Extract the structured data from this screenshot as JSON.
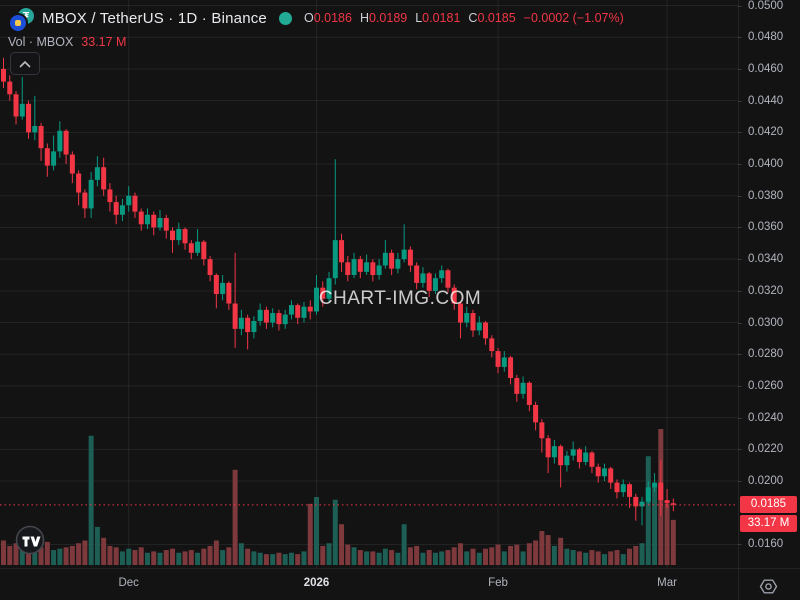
{
  "header": {
    "title": "MBOX / TetherUS · 1D · Binance",
    "ohlc": [
      {
        "k": "O",
        "v": "0.0186"
      },
      {
        "k": "H",
        "v": "0.0189"
      },
      {
        "k": "L",
        "v": "0.0181"
      },
      {
        "k": "C",
        "v": "0.0185"
      }
    ],
    "change": "−0.0002 (−1.07%)",
    "vol_label": "Vol · MBOX",
    "vol_value": "33.17 M"
  },
  "watermark": "CHART-IMG.COM",
  "price_axis": {
    "tick_labels": [
      "0.0500",
      "0.0480",
      "0.0460",
      "0.0440",
      "0.0420",
      "0.0400",
      "0.0380",
      "0.0360",
      "0.0340",
      "0.0320",
      "0.0300",
      "0.0280",
      "0.0260",
      "0.0240",
      "0.0220",
      "0.0200",
      "0.0160"
    ],
    "last_price_badge": "0.0185",
    "volume_badge": "33.17 M"
  },
  "time_axis": {
    "ticks": [
      {
        "label": "Dec",
        "index": 20,
        "bold": false
      },
      {
        "label": "2026",
        "index": 50,
        "bold": true
      },
      {
        "label": "Feb",
        "index": 79,
        "bold": false
      },
      {
        "label": "Mar",
        "index": 106,
        "bold": false
      }
    ]
  },
  "colors": {
    "background": "#131314",
    "up": "#089981",
    "down": "#f23645",
    "vol_up": "#1d5e55",
    "vol_down": "#7e393d",
    "grid": "rgba(255,255,255,0.07)",
    "axis_text": "#b2b5be",
    "badge_bg": "#f23645",
    "price_line": "#f23645",
    "status_dot": "#22ab94",
    "quote_logo": "#26a69a",
    "base_logo": "#1d4ed8"
  },
  "chart_data": {
    "type": "candlestick",
    "title": "MBOX / TetherUS",
    "interval": "1D",
    "exchange": "Binance",
    "volume_indicator": "Vol · MBOX",
    "y_axis": {
      "min": 0.015,
      "max": 0.0504,
      "tick_step": 0.002,
      "grid": true
    },
    "x_axis": {
      "visible_months": [
        "Dec",
        "2026",
        "Feb",
        "Mar"
      ]
    },
    "last": {
      "open": 0.0186,
      "high": 0.0189,
      "low": 0.0181,
      "close": 0.0185,
      "change": -0.0002,
      "change_pct": -1.07,
      "volume_m": 33.17
    },
    "candles_format": [
      "open",
      "high",
      "low",
      "close",
      "volume_millions"
    ],
    "candles": [
      [
        0.046,
        0.0467,
        0.0448,
        0.0452,
        18
      ],
      [
        0.0452,
        0.0456,
        0.044,
        0.0444,
        14
      ],
      [
        0.0444,
        0.0446,
        0.0425,
        0.043,
        16
      ],
      [
        0.043,
        0.0455,
        0.0428,
        0.0438,
        12
      ],
      [
        0.0438,
        0.044,
        0.0416,
        0.042,
        15
      ],
      [
        0.042,
        0.0443,
        0.0415,
        0.0424,
        10
      ],
      [
        0.0424,
        0.0426,
        0.0402,
        0.041,
        13
      ],
      [
        0.041,
        0.0413,
        0.0392,
        0.0399,
        17
      ],
      [
        0.0399,
        0.0418,
        0.0396,
        0.0408,
        11
      ],
      [
        0.0408,
        0.0427,
        0.0404,
        0.0421,
        12
      ],
      [
        0.0421,
        0.0422,
        0.04,
        0.0406,
        13
      ],
      [
        0.0406,
        0.0408,
        0.0388,
        0.0394,
        14
      ],
      [
        0.0394,
        0.0396,
        0.0374,
        0.0382,
        16
      ],
      [
        0.0382,
        0.0384,
        0.0366,
        0.0372,
        18
      ],
      [
        0.0372,
        0.0395,
        0.0366,
        0.039,
        95
      ],
      [
        0.039,
        0.0405,
        0.0386,
        0.0398,
        28
      ],
      [
        0.0398,
        0.0404,
        0.038,
        0.0384,
        20
      ],
      [
        0.0384,
        0.0388,
        0.037,
        0.0376,
        14
      ],
      [
        0.0376,
        0.038,
        0.0362,
        0.0368,
        13
      ],
      [
        0.0368,
        0.0378,
        0.0364,
        0.0374,
        10
      ],
      [
        0.0374,
        0.0386,
        0.037,
        0.038,
        12
      ],
      [
        0.038,
        0.0382,
        0.0366,
        0.037,
        11
      ],
      [
        0.037,
        0.0372,
        0.0358,
        0.0362,
        13
      ],
      [
        0.0362,
        0.0372,
        0.0359,
        0.0368,
        9
      ],
      [
        0.0368,
        0.037,
        0.0355,
        0.036,
        10
      ],
      [
        0.036,
        0.0371,
        0.0358,
        0.0366,
        9
      ],
      [
        0.0366,
        0.0368,
        0.0353,
        0.0358,
        11
      ],
      [
        0.0358,
        0.036,
        0.0344,
        0.0352,
        12
      ],
      [
        0.0352,
        0.0363,
        0.0349,
        0.0359,
        9
      ],
      [
        0.0359,
        0.036,
        0.0346,
        0.035,
        10
      ],
      [
        0.035,
        0.0352,
        0.034,
        0.0344,
        11
      ],
      [
        0.0344,
        0.0359,
        0.0342,
        0.0351,
        9
      ],
      [
        0.0351,
        0.0352,
        0.0336,
        0.034,
        12
      ],
      [
        0.034,
        0.0342,
        0.0326,
        0.033,
        14
      ],
      [
        0.033,
        0.0331,
        0.0309,
        0.0318,
        18
      ],
      [
        0.0318,
        0.033,
        0.0314,
        0.0325,
        11
      ],
      [
        0.0325,
        0.0326,
        0.0308,
        0.0312,
        13
      ],
      [
        0.0312,
        0.0344,
        0.0284,
        0.0296,
        70
      ],
      [
        0.0296,
        0.0308,
        0.0292,
        0.0303,
        16
      ],
      [
        0.0303,
        0.0305,
        0.0283,
        0.0294,
        12
      ],
      [
        0.0294,
        0.0304,
        0.029,
        0.0301,
        10
      ],
      [
        0.0301,
        0.0312,
        0.0298,
        0.0308,
        9
      ],
      [
        0.0308,
        0.031,
        0.0296,
        0.03,
        8
      ],
      [
        0.03,
        0.0309,
        0.0297,
        0.0306,
        8
      ],
      [
        0.0306,
        0.0308,
        0.0295,
        0.0299,
        9
      ],
      [
        0.0299,
        0.0308,
        0.0296,
        0.0305,
        8
      ],
      [
        0.0305,
        0.0314,
        0.0302,
        0.0311,
        9
      ],
      [
        0.0311,
        0.0312,
        0.0299,
        0.0303,
        8
      ],
      [
        0.0303,
        0.0313,
        0.03,
        0.031,
        10
      ],
      [
        0.031,
        0.0314,
        0.0302,
        0.0307,
        45
      ],
      [
        0.0307,
        0.033,
        0.0305,
        0.0322,
        50
      ],
      [
        0.0322,
        0.0326,
        0.031,
        0.0315,
        14
      ],
      [
        0.0315,
        0.0332,
        0.0313,
        0.0328,
        16
      ],
      [
        0.0328,
        0.0403,
        0.0324,
        0.0352,
        48
      ],
      [
        0.0352,
        0.0356,
        0.0332,
        0.0338,
        30
      ],
      [
        0.0338,
        0.0342,
        0.0326,
        0.033,
        15
      ],
      [
        0.033,
        0.0344,
        0.0328,
        0.034,
        13
      ],
      [
        0.034,
        0.0342,
        0.0328,
        0.0332,
        11
      ],
      [
        0.0332,
        0.0343,
        0.033,
        0.0338,
        10
      ],
      [
        0.0338,
        0.034,
        0.0326,
        0.033,
        10
      ],
      [
        0.033,
        0.034,
        0.0327,
        0.0336,
        9
      ],
      [
        0.0336,
        0.0352,
        0.0334,
        0.0344,
        12
      ],
      [
        0.0344,
        0.0346,
        0.033,
        0.0334,
        11
      ],
      [
        0.0334,
        0.0344,
        0.0331,
        0.034,
        9
      ],
      [
        0.034,
        0.0362,
        0.0338,
        0.0346,
        30
      ],
      [
        0.0346,
        0.0348,
        0.0332,
        0.0336,
        13
      ],
      [
        0.0336,
        0.0338,
        0.0321,
        0.0325,
        14
      ],
      [
        0.0325,
        0.0335,
        0.0322,
        0.0331,
        9
      ],
      [
        0.0331,
        0.0332,
        0.0316,
        0.032,
        11
      ],
      [
        0.032,
        0.0331,
        0.0318,
        0.0328,
        9
      ],
      [
        0.0328,
        0.0336,
        0.0325,
        0.0333,
        10
      ],
      [
        0.0333,
        0.0334,
        0.0319,
        0.0322,
        11
      ],
      [
        0.0322,
        0.0324,
        0.0308,
        0.0312,
        13
      ],
      [
        0.0312,
        0.0313,
        0.029,
        0.03,
        16
      ],
      [
        0.03,
        0.031,
        0.0297,
        0.0306,
        10
      ],
      [
        0.0306,
        0.0308,
        0.0291,
        0.0295,
        12
      ],
      [
        0.0295,
        0.0304,
        0.0292,
        0.03,
        9
      ],
      [
        0.03,
        0.0301,
        0.0286,
        0.029,
        12
      ],
      [
        0.029,
        0.0292,
        0.0278,
        0.0282,
        13
      ],
      [
        0.0282,
        0.0284,
        0.0268,
        0.0272,
        15
      ],
      [
        0.0272,
        0.0282,
        0.0269,
        0.0278,
        10
      ],
      [
        0.0278,
        0.0279,
        0.0261,
        0.0265,
        14
      ],
      [
        0.0265,
        0.0267,
        0.025,
        0.0255,
        15
      ],
      [
        0.0255,
        0.0266,
        0.0252,
        0.0262,
        10
      ],
      [
        0.0262,
        0.0263,
        0.0244,
        0.0248,
        16
      ],
      [
        0.0248,
        0.025,
        0.0232,
        0.0237,
        18
      ],
      [
        0.0237,
        0.0239,
        0.0218,
        0.0227,
        25
      ],
      [
        0.0227,
        0.0229,
        0.0205,
        0.0215,
        22
      ],
      [
        0.0215,
        0.0226,
        0.0211,
        0.0222,
        14
      ],
      [
        0.0222,
        0.0223,
        0.0196,
        0.021,
        20
      ],
      [
        0.021,
        0.0219,
        0.0206,
        0.0216,
        12
      ],
      [
        0.0216,
        0.0225,
        0.0213,
        0.022,
        11
      ],
      [
        0.022,
        0.0221,
        0.0208,
        0.0212,
        10
      ],
      [
        0.0212,
        0.0222,
        0.021,
        0.0218,
        9
      ],
      [
        0.0218,
        0.0219,
        0.0205,
        0.0209,
        11
      ],
      [
        0.0209,
        0.0211,
        0.0199,
        0.0203,
        10
      ],
      [
        0.0203,
        0.0211,
        0.02,
        0.0208,
        8
      ],
      [
        0.0208,
        0.0209,
        0.0195,
        0.0199,
        10
      ],
      [
        0.0199,
        0.0201,
        0.0189,
        0.0193,
        11
      ],
      [
        0.0193,
        0.0201,
        0.019,
        0.0198,
        8
      ],
      [
        0.0198,
        0.0199,
        0.0183,
        0.019,
        12
      ],
      [
        0.019,
        0.0192,
        0.0175,
        0.0184,
        14
      ],
      [
        0.0184,
        0.019,
        0.0172,
        0.0187,
        16
      ],
      [
        0.0187,
        0.02,
        0.0185,
        0.0196,
        80
      ],
      [
        0.0196,
        0.0205,
        0.0193,
        0.0199,
        60
      ],
      [
        0.0199,
        0.0213,
        0.0178,
        0.0188,
        100
      ],
      [
        0.0188,
        0.0195,
        0.0183,
        0.0186,
        45
      ],
      [
        0.0186,
        0.0189,
        0.0181,
        0.0185,
        33.17
      ]
    ]
  }
}
